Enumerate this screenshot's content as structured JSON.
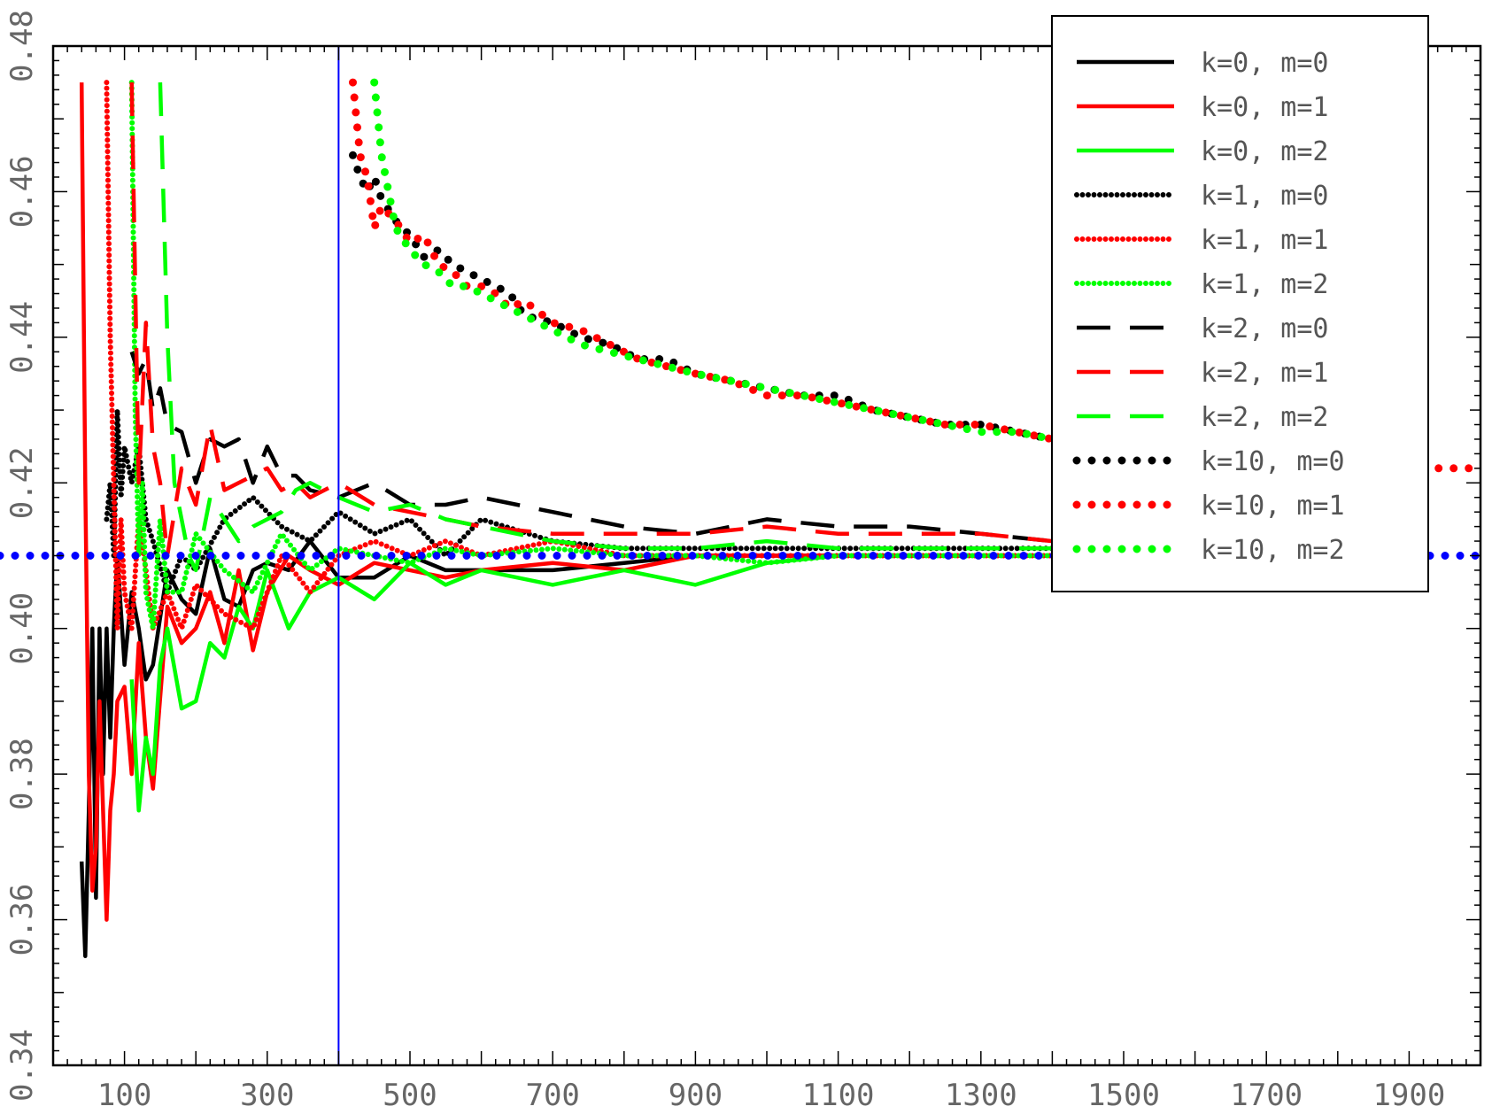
{
  "chart_data": {
    "type": "line",
    "title": "",
    "xlabel": "",
    "ylabel": "",
    "xlim": [
      0,
      2000
    ],
    "ylim": [
      0.34,
      0.48
    ],
    "x_ticks": [
      100,
      300,
      500,
      700,
      900,
      1100,
      1300,
      1500,
      1700,
      1900
    ],
    "y_ticks": [
      "0.34",
      "0.36",
      "0.38",
      "0.40",
      "0.42",
      "0.44",
      "0.46",
      "0.48"
    ],
    "grid": false,
    "legend_position": "top-right",
    "reference_lines": [
      {
        "orientation": "vertical",
        "x": 400,
        "color": "#0000ff",
        "style": "solid"
      },
      {
        "orientation": "horizontal",
        "y": 0.41,
        "color": "#0000ff",
        "style": "dotted"
      }
    ],
    "series": [
      {
        "name": "k=0, m=0",
        "color": "#000000",
        "style": "solid",
        "x": [
          40,
          45,
          50,
          55,
          60,
          65,
          70,
          75,
          80,
          85,
          90,
          100,
          110,
          120,
          130,
          140,
          160,
          180,
          200,
          220,
          240,
          260,
          280,
          300,
          330,
          360,
          400,
          450,
          500,
          550,
          600,
          700,
          800,
          900,
          1000,
          1100,
          1200,
          1300,
          1400
        ],
        "y": [
          0.368,
          0.355,
          0.375,
          0.4,
          0.363,
          0.4,
          0.38,
          0.4,
          0.385,
          0.4,
          0.41,
          0.395,
          0.405,
          0.4,
          0.393,
          0.395,
          0.408,
          0.404,
          0.402,
          0.411,
          0.404,
          0.403,
          0.408,
          0.409,
          0.408,
          0.412,
          0.407,
          0.407,
          0.41,
          0.408,
          0.408,
          0.408,
          0.409,
          0.41,
          0.41,
          0.41,
          0.41,
          0.41,
          0.41
        ]
      },
      {
        "name": "k=0, m=1",
        "color": "#ff0000",
        "style": "solid",
        "x": [
          40,
          45,
          50,
          55,
          60,
          65,
          70,
          75,
          80,
          85,
          90,
          100,
          110,
          120,
          130,
          140,
          160,
          180,
          200,
          220,
          240,
          260,
          280,
          300,
          330,
          360,
          400,
          450,
          500,
          550,
          600,
          700,
          800,
          900,
          1000,
          1100,
          1200,
          1300,
          1400
        ],
        "y": [
          0.475,
          0.42,
          0.38,
          0.364,
          0.37,
          0.39,
          0.375,
          0.36,
          0.375,
          0.38,
          0.39,
          0.392,
          0.38,
          0.398,
          0.385,
          0.378,
          0.403,
          0.398,
          0.4,
          0.405,
          0.398,
          0.408,
          0.397,
          0.405,
          0.41,
          0.408,
          0.406,
          0.409,
          0.408,
          0.407,
          0.408,
          0.409,
          0.408,
          0.41,
          0.41,
          0.41,
          0.41,
          0.41,
          0.41
        ]
      },
      {
        "name": "k=0, m=2",
        "color": "#00ff00",
        "style": "solid",
        "x": [
          110,
          120,
          130,
          140,
          150,
          160,
          180,
          200,
          220,
          240,
          260,
          280,
          300,
          330,
          360,
          400,
          450,
          500,
          550,
          600,
          700,
          800,
          900,
          1000,
          1100,
          1200,
          1300,
          1400
        ],
        "y": [
          0.393,
          0.375,
          0.385,
          0.38,
          0.395,
          0.4,
          0.389,
          0.39,
          0.398,
          0.396,
          0.403,
          0.4,
          0.408,
          0.4,
          0.405,
          0.407,
          0.404,
          0.409,
          0.406,
          0.408,
          0.406,
          0.408,
          0.406,
          0.409,
          0.41,
          0.41,
          0.41,
          0.41
        ]
      },
      {
        "name": "k=1, m=0",
        "color": "#000000",
        "style": "dotted-fine",
        "x": [
          75,
          80,
          85,
          90,
          95,
          100,
          110,
          120,
          130,
          140,
          160,
          180,
          200,
          240,
          280,
          320,
          360,
          400,
          450,
          500,
          550,
          600,
          700,
          800,
          900,
          1000,
          1100,
          1200,
          1300,
          1400
        ],
        "y": [
          0.415,
          0.42,
          0.41,
          0.43,
          0.418,
          0.425,
          0.42,
          0.425,
          0.415,
          0.412,
          0.405,
          0.41,
          0.408,
          0.415,
          0.418,
          0.414,
          0.412,
          0.416,
          0.413,
          0.415,
          0.41,
          0.415,
          0.412,
          0.411,
          0.411,
          0.411,
          0.411,
          0.411,
          0.411,
          0.411
        ]
      },
      {
        "name": "k=1, m=1",
        "color": "#ff0000",
        "style": "dotted-fine",
        "x": [
          75,
          80,
          85,
          90,
          95,
          100,
          110,
          120,
          130,
          140,
          160,
          180,
          200,
          240,
          280,
          320,
          360,
          400,
          450,
          500,
          550,
          600,
          700,
          800,
          900,
          1000,
          1100,
          1200,
          1300,
          1400
        ],
        "y": [
          0.475,
          0.44,
          0.42,
          0.4,
          0.415,
          0.405,
          0.4,
          0.415,
          0.408,
          0.4,
          0.405,
          0.4,
          0.406,
          0.402,
          0.4,
          0.41,
          0.405,
          0.41,
          0.412,
          0.41,
          0.412,
          0.41,
          0.412,
          0.41,
          0.41,
          0.41,
          0.41,
          0.41,
          0.41,
          0.41
        ]
      },
      {
        "name": "k=1, m=2",
        "color": "#00ff00",
        "style": "dotted-fine",
        "x": [
          110,
          115,
          120,
          125,
          130,
          140,
          150,
          160,
          180,
          200,
          240,
          280,
          320,
          360,
          400,
          450,
          500,
          550,
          600,
          700,
          800,
          900,
          1000,
          1100,
          1200,
          1300,
          1400
        ],
        "y": [
          0.475,
          0.43,
          0.41,
          0.42,
          0.405,
          0.4,
          0.415,
          0.405,
          0.405,
          0.413,
          0.408,
          0.405,
          0.413,
          0.408,
          0.411,
          0.41,
          0.409,
          0.411,
          0.41,
          0.411,
          0.41,
          0.41,
          0.409,
          0.41,
          0.41,
          0.41,
          0.41
        ]
      },
      {
        "name": "k=2, m=0",
        "color": "#000000",
        "style": "dashed",
        "x": [
          110,
          120,
          130,
          140,
          150,
          160,
          180,
          200,
          220,
          240,
          260,
          280,
          300,
          320,
          340,
          360,
          400,
          450,
          500,
          550,
          600,
          700,
          800,
          900,
          1000,
          1100,
          1200,
          1300,
          1400
        ],
        "y": [
          0.438,
          0.435,
          0.437,
          0.43,
          0.433,
          0.428,
          0.427,
          0.42,
          0.426,
          0.425,
          0.426,
          0.42,
          0.425,
          0.421,
          0.421,
          0.419,
          0.418,
          0.42,
          0.417,
          0.417,
          0.418,
          0.416,
          0.414,
          0.413,
          0.415,
          0.414,
          0.414,
          0.413,
          0.412
        ]
      },
      {
        "name": "k=2, m=1",
        "color": "#ff0000",
        "style": "dashed",
        "x": [
          110,
          120,
          130,
          140,
          150,
          160,
          180,
          200,
          220,
          240,
          260,
          280,
          300,
          320,
          340,
          360,
          400,
          450,
          500,
          550,
          600,
          700,
          800,
          900,
          1000,
          1100,
          1200,
          1300,
          1400
        ],
        "y": [
          0.475,
          0.42,
          0.442,
          0.425,
          0.42,
          0.41,
          0.422,
          0.417,
          0.428,
          0.419,
          0.42,
          0.421,
          0.422,
          0.419,
          0.42,
          0.418,
          0.42,
          0.417,
          0.416,
          0.415,
          0.414,
          0.413,
          0.413,
          0.413,
          0.414,
          0.413,
          0.413,
          0.413,
          0.412
        ]
      },
      {
        "name": "k=2, m=2",
        "color": "#00ff00",
        "style": "dashed",
        "x": [
          150,
          160,
          170,
          180,
          190,
          200,
          220,
          240,
          260,
          280,
          300,
          320,
          340,
          360,
          400,
          450,
          500,
          550,
          600,
          700,
          800,
          900,
          1000,
          1100,
          1200,
          1300,
          1400
        ],
        "y": [
          0.475,
          0.44,
          0.42,
          0.415,
          0.41,
          0.408,
          0.418,
          0.415,
          0.412,
          0.414,
          0.415,
          0.416,
          0.419,
          0.42,
          0.418,
          0.416,
          0.417,
          0.415,
          0.414,
          0.412,
          0.411,
          0.411,
          0.412,
          0.411,
          0.411,
          0.411,
          0.411
        ]
      },
      {
        "name": "k=10, m=0",
        "color": "#000000",
        "style": "dotted-coarse",
        "x": [
          420,
          430,
          440,
          450,
          460,
          480,
          500,
          520,
          540,
          560,
          580,
          600,
          620,
          640,
          660,
          700,
          740,
          780,
          820,
          860,
          900,
          950,
          1000,
          1050,
          1100,
          1150,
          1200,
          1250,
          1300,
          1350,
          1400
        ],
        "y": [
          0.465,
          0.462,
          0.46,
          0.462,
          0.459,
          0.456,
          0.454,
          0.451,
          0.452,
          0.45,
          0.449,
          0.448,
          0.447,
          0.446,
          0.443,
          0.442,
          0.44,
          0.439,
          0.437,
          0.437,
          0.435,
          0.434,
          0.433,
          0.432,
          0.432,
          0.43,
          0.429,
          0.428,
          0.428,
          0.427,
          0.426
        ]
      },
      {
        "name": "k=10, m=1",
        "color": "#ff0000",
        "style": "dotted-coarse",
        "x": [
          420,
          430,
          440,
          450,
          460,
          480,
          500,
          520,
          540,
          560,
          580,
          600,
          620,
          640,
          660,
          700,
          740,
          780,
          820,
          860,
          900,
          950,
          1000,
          1050,
          1100,
          1150,
          1200,
          1250,
          1300,
          1350,
          1400,
          1600,
          1700,
          1800,
          1900,
          2000
        ],
        "y": [
          0.475,
          0.465,
          0.462,
          0.455,
          0.458,
          0.456,
          0.453,
          0.454,
          0.45,
          0.449,
          0.447,
          0.447,
          0.446,
          0.444,
          0.445,
          0.442,
          0.441,
          0.439,
          0.437,
          0.436,
          0.435,
          0.434,
          0.432,
          0.432,
          0.431,
          0.43,
          0.429,
          0.428,
          0.428,
          0.427,
          0.426,
          0.424,
          0.423,
          0.423,
          0.422,
          0.422
        ]
      },
      {
        "name": "k=10, m=2",
        "color": "#00ff00",
        "style": "dotted-coarse",
        "x": [
          450,
          460,
          470,
          480,
          500,
          520,
          540,
          560,
          580,
          600,
          620,
          640,
          660,
          700,
          740,
          780,
          820,
          860,
          900,
          950,
          1000,
          1050,
          1100,
          1150,
          1200,
          1250,
          1300,
          1350,
          1400
        ],
        "y": [
          0.475,
          0.465,
          0.46,
          0.455,
          0.452,
          0.45,
          0.449,
          0.447,
          0.447,
          0.446,
          0.445,
          0.444,
          0.443,
          0.441,
          0.439,
          0.438,
          0.437,
          0.436,
          0.435,
          0.434,
          0.433,
          0.432,
          0.431,
          0.43,
          0.429,
          0.428,
          0.427,
          0.427,
          0.426
        ]
      }
    ]
  }
}
